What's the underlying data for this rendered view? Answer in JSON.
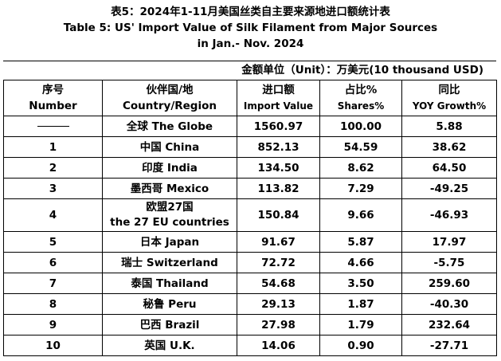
{
  "title": {
    "line1": "表5：2024年1-11月美国丝类自主要来源地进口额统计表",
    "line2": "Table 5: US' Import Value of Silk Filament from Major Sources",
    "line3": "in Jan.- Nov. 2024"
  },
  "unit_label": "金额单位（Unit）：万美元(10 thousand USD)",
  "headers": [
    {
      "cn": "序号",
      "en": "Number"
    },
    {
      "cn": "伙伴国/地",
      "en": "Country/Region"
    },
    {
      "cn": "进口额",
      "en": "Import Value"
    },
    {
      "cn": "占比%",
      "en": "Shares%"
    },
    {
      "cn": "同比",
      "en": "YOY Growth%"
    }
  ],
  "rows": [
    {
      "no": "——",
      "country": "全球 The Globe",
      "value": "1560.97",
      "share": "100.00",
      "yoy": "5.88"
    },
    {
      "no": "1",
      "country": "中国 China",
      "value": "852.13",
      "share": "54.59",
      "yoy": "38.62"
    },
    {
      "no": "2",
      "country": "印度 India",
      "value": "134.50",
      "share": "8.62",
      "yoy": "64.50"
    },
    {
      "no": "3",
      "country": "墨西哥 Mexico",
      "value": "113.82",
      "share": "7.29",
      "yoy": "-49.25"
    },
    {
      "no": "4",
      "country": "欧盟27国",
      "country2": "the 27 EU countries",
      "value": "150.84",
      "share": "9.66",
      "yoy": "-46.93"
    },
    {
      "no": "5",
      "country": "日本 Japan",
      "value": "91.67",
      "share": "5.87",
      "yoy": "17.97"
    },
    {
      "no": "6",
      "country": "瑞士 Switzerland",
      "value": "72.72",
      "share": "4.66",
      "yoy": "-5.75"
    },
    {
      "no": "7",
      "country": "泰国 Thailand",
      "value": "54.68",
      "share": "3.50",
      "yoy": "259.60"
    },
    {
      "no": "8",
      "country": "秘鲁 Peru",
      "value": "29.13",
      "share": "1.87",
      "yoy": "-40.30"
    },
    {
      "no": "9",
      "country": "巴西 Brazil",
      "value": "27.98",
      "share": "1.79",
      "yoy": "232.64"
    },
    {
      "no": "10",
      "country": "英国 U.K.",
      "value": "14.06",
      "share": "0.90",
      "yoy": "-27.71"
    }
  ]
}
